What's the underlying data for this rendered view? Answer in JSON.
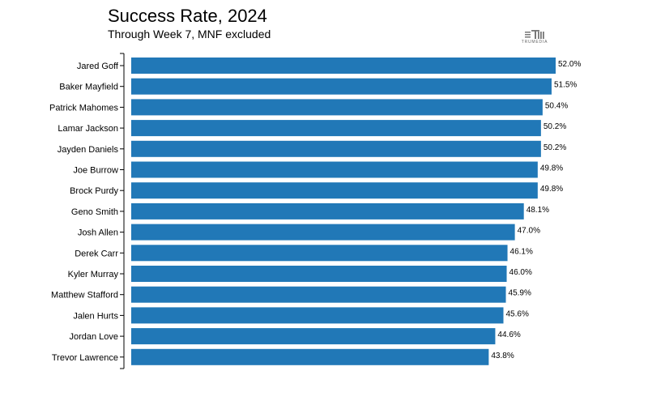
{
  "chart_data": {
    "type": "bar",
    "orientation": "horizontal",
    "title": "Success Rate, 2024",
    "subtitle": "Through Week 7, MNF excluded",
    "categories": [
      "Jared Goff",
      "Baker Mayfield",
      "Patrick Mahomes",
      "Lamar Jackson",
      "Jayden Daniels",
      "Joe Burrow",
      "Brock Purdy",
      "Geno Smith",
      "Josh Allen",
      "Derek Carr",
      "Kyler Murray",
      "Matthew Stafford",
      "Jalen Hurts",
      "Jordan Love",
      "Trevor Lawrence"
    ],
    "values": [
      52.0,
      51.5,
      50.4,
      50.2,
      50.2,
      49.8,
      49.8,
      48.1,
      47.0,
      46.1,
      46.0,
      45.9,
      45.6,
      44.6,
      43.8
    ],
    "value_labels": [
      "52.0%",
      "51.5%",
      "50.4%",
      "50.2%",
      "50.2%",
      "49.8%",
      "49.8%",
      "48.1%",
      "47.0%",
      "46.1%",
      "46.0%",
      "45.9%",
      "45.6%",
      "44.6%",
      "43.8%"
    ],
    "xlim": [
      0,
      52.0
    ],
    "grid": false,
    "bar_color": "#2178b7"
  },
  "branding": {
    "logo_text": "TRUMEDIA",
    "logo_icon": "trumedia-logo-icon"
  }
}
